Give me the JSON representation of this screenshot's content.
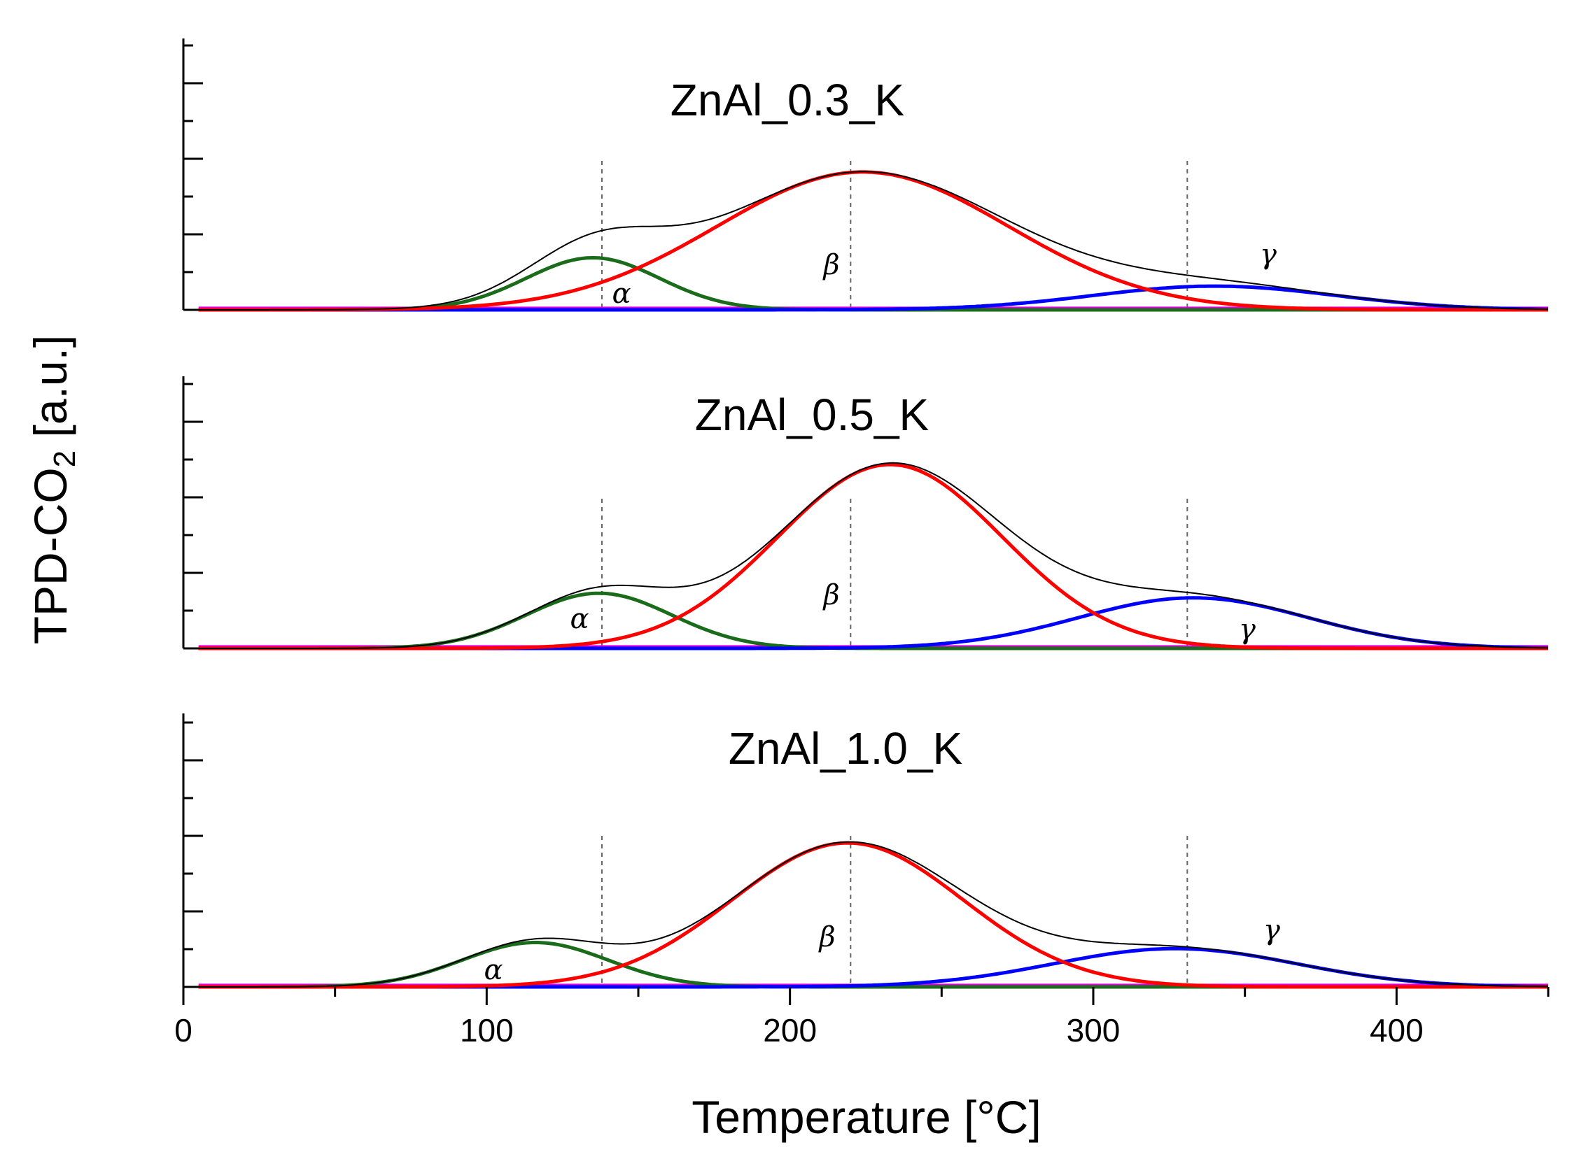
{
  "chart_data": {
    "type": "line",
    "xlabel": "Temperature [°C]",
    "ylabel": "TPD-CO",
    "ylabel_subscript": "2",
    "ylabel_suffix": " [a.u.]",
    "x_ticks": [
      "0",
      "100",
      "200",
      "300",
      "400"
    ],
    "xlim": [
      0,
      450
    ],
    "reference_temperatures": [
      138,
      220,
      331
    ],
    "colors": {
      "total": "#000000",
      "alpha": "#1a6b1a",
      "beta": "#ff0000",
      "gamma": "#0000ff",
      "baseline": "#e000e0",
      "reference": "#666666"
    },
    "panels": [
      {
        "title": "ZnAl_0.3_K",
        "ylim": [
          0,
          1.8
        ],
        "peaks": {
          "alpha": {
            "label": "α",
            "center": 135,
            "height": 0.34,
            "width": 22
          },
          "beta": {
            "label": "β",
            "center": 224,
            "height": 0.9,
            "width": 48
          },
          "gamma": {
            "label": "γ",
            "center": 340,
            "height": 0.155,
            "width": 40
          }
        }
      },
      {
        "title": "ZnAl_0.5_K",
        "ylim": [
          0,
          1.8
        ],
        "peaks": {
          "alpha": {
            "label": "α",
            "center": 137,
            "height": 0.36,
            "width": 24
          },
          "beta": {
            "label": "β",
            "center": 233,
            "height": 1.2,
            "width": 37
          },
          "gamma": {
            "label": "γ",
            "center": 333,
            "height": 0.33,
            "width": 38
          }
        }
      },
      {
        "title": "ZnAl_1.0_K",
        "ylim": [
          0,
          1.8
        ],
        "peaks": {
          "alpha": {
            "label": "α",
            "center": 116,
            "height": 0.29,
            "width": 24
          },
          "beta": {
            "label": "β",
            "center": 219,
            "height": 0.94,
            "width": 38
          },
          "gamma": {
            "label": "γ",
            "center": 327,
            "height": 0.25,
            "width": 40
          }
        }
      }
    ]
  }
}
